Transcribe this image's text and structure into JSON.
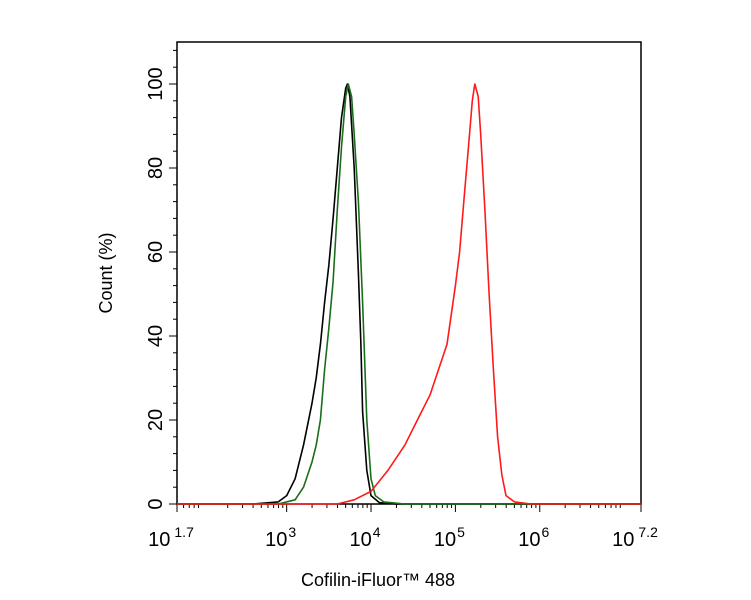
{
  "chart_data": {
    "type": "line",
    "title": "",
    "xlabel": "Cofilin-iFluor™ 488",
    "ylabel": "Count  (%)",
    "x_scale": "log10",
    "xlim_exp": [
      1.7,
      7.2
    ],
    "ylim": [
      0,
      110
    ],
    "x_ticks": [
      {
        "base": "10",
        "exp": "1.7",
        "value_exp": 1.7
      },
      {
        "base": "10",
        "exp": "3",
        "value_exp": 3
      },
      {
        "base": "10",
        "exp": "4",
        "value_exp": 4
      },
      {
        "base": "10",
        "exp": "5",
        "value_exp": 5
      },
      {
        "base": "10",
        "exp": "6",
        "value_exp": 6
      },
      {
        "base": "10",
        "exp": "7.2",
        "value_exp": 7.2
      }
    ],
    "y_ticks": [
      "0",
      "20",
      "40",
      "60",
      "80",
      "100"
    ],
    "grid": false,
    "series": [
      {
        "color": "#000000",
        "points": [
          [
            1.7,
            0
          ],
          [
            2.6,
            0
          ],
          [
            2.9,
            0.5
          ],
          [
            3.0,
            2
          ],
          [
            3.1,
            6
          ],
          [
            3.2,
            14
          ],
          [
            3.3,
            24
          ],
          [
            3.35,
            30
          ],
          [
            3.4,
            38
          ],
          [
            3.45,
            48
          ],
          [
            3.5,
            57
          ],
          [
            3.55,
            68
          ],
          [
            3.6,
            80
          ],
          [
            3.65,
            92
          ],
          [
            3.7,
            99
          ],
          [
            3.72,
            100
          ],
          [
            3.75,
            97
          ],
          [
            3.8,
            80
          ],
          [
            3.85,
            55
          ],
          [
            3.88,
            38
          ],
          [
            3.9,
            22
          ],
          [
            3.95,
            8
          ],
          [
            4.0,
            2
          ],
          [
            4.1,
            0.3
          ],
          [
            4.3,
            0
          ],
          [
            7.2,
            0
          ]
        ]
      },
      {
        "color": "#1a6e1a",
        "points": [
          [
            1.7,
            0
          ],
          [
            2.9,
            0
          ],
          [
            3.1,
            1
          ],
          [
            3.2,
            4
          ],
          [
            3.3,
            10
          ],
          [
            3.35,
            14
          ],
          [
            3.4,
            20
          ],
          [
            3.45,
            32
          ],
          [
            3.5,
            42
          ],
          [
            3.55,
            53
          ],
          [
            3.6,
            70
          ],
          [
            3.65,
            85
          ],
          [
            3.7,
            97
          ],
          [
            3.73,
            100
          ],
          [
            3.77,
            97
          ],
          [
            3.8,
            88
          ],
          [
            3.85,
            72
          ],
          [
            3.9,
            48
          ],
          [
            3.95,
            20
          ],
          [
            4.0,
            6
          ],
          [
            4.05,
            2
          ],
          [
            4.15,
            0.5
          ],
          [
            4.4,
            0
          ],
          [
            7.2,
            0
          ]
        ]
      },
      {
        "color": "#ff1a1a",
        "points": [
          [
            1.7,
            0
          ],
          [
            3.6,
            0
          ],
          [
            3.8,
            1
          ],
          [
            4.0,
            3
          ],
          [
            4.2,
            8
          ],
          [
            4.4,
            14
          ],
          [
            4.55,
            20
          ],
          [
            4.7,
            26
          ],
          [
            4.8,
            32
          ],
          [
            4.9,
            38
          ],
          [
            4.95,
            45
          ],
          [
            5.0,
            52
          ],
          [
            5.05,
            60
          ],
          [
            5.1,
            72
          ],
          [
            5.15,
            84
          ],
          [
            5.2,
            96
          ],
          [
            5.23,
            100
          ],
          [
            5.27,
            97
          ],
          [
            5.3,
            88
          ],
          [
            5.35,
            70
          ],
          [
            5.4,
            50
          ],
          [
            5.45,
            32
          ],
          [
            5.5,
            16
          ],
          [
            5.55,
            7
          ],
          [
            5.6,
            2
          ],
          [
            5.7,
            0.5
          ],
          [
            5.9,
            0
          ],
          [
            7.2,
            0
          ]
        ]
      }
    ]
  }
}
